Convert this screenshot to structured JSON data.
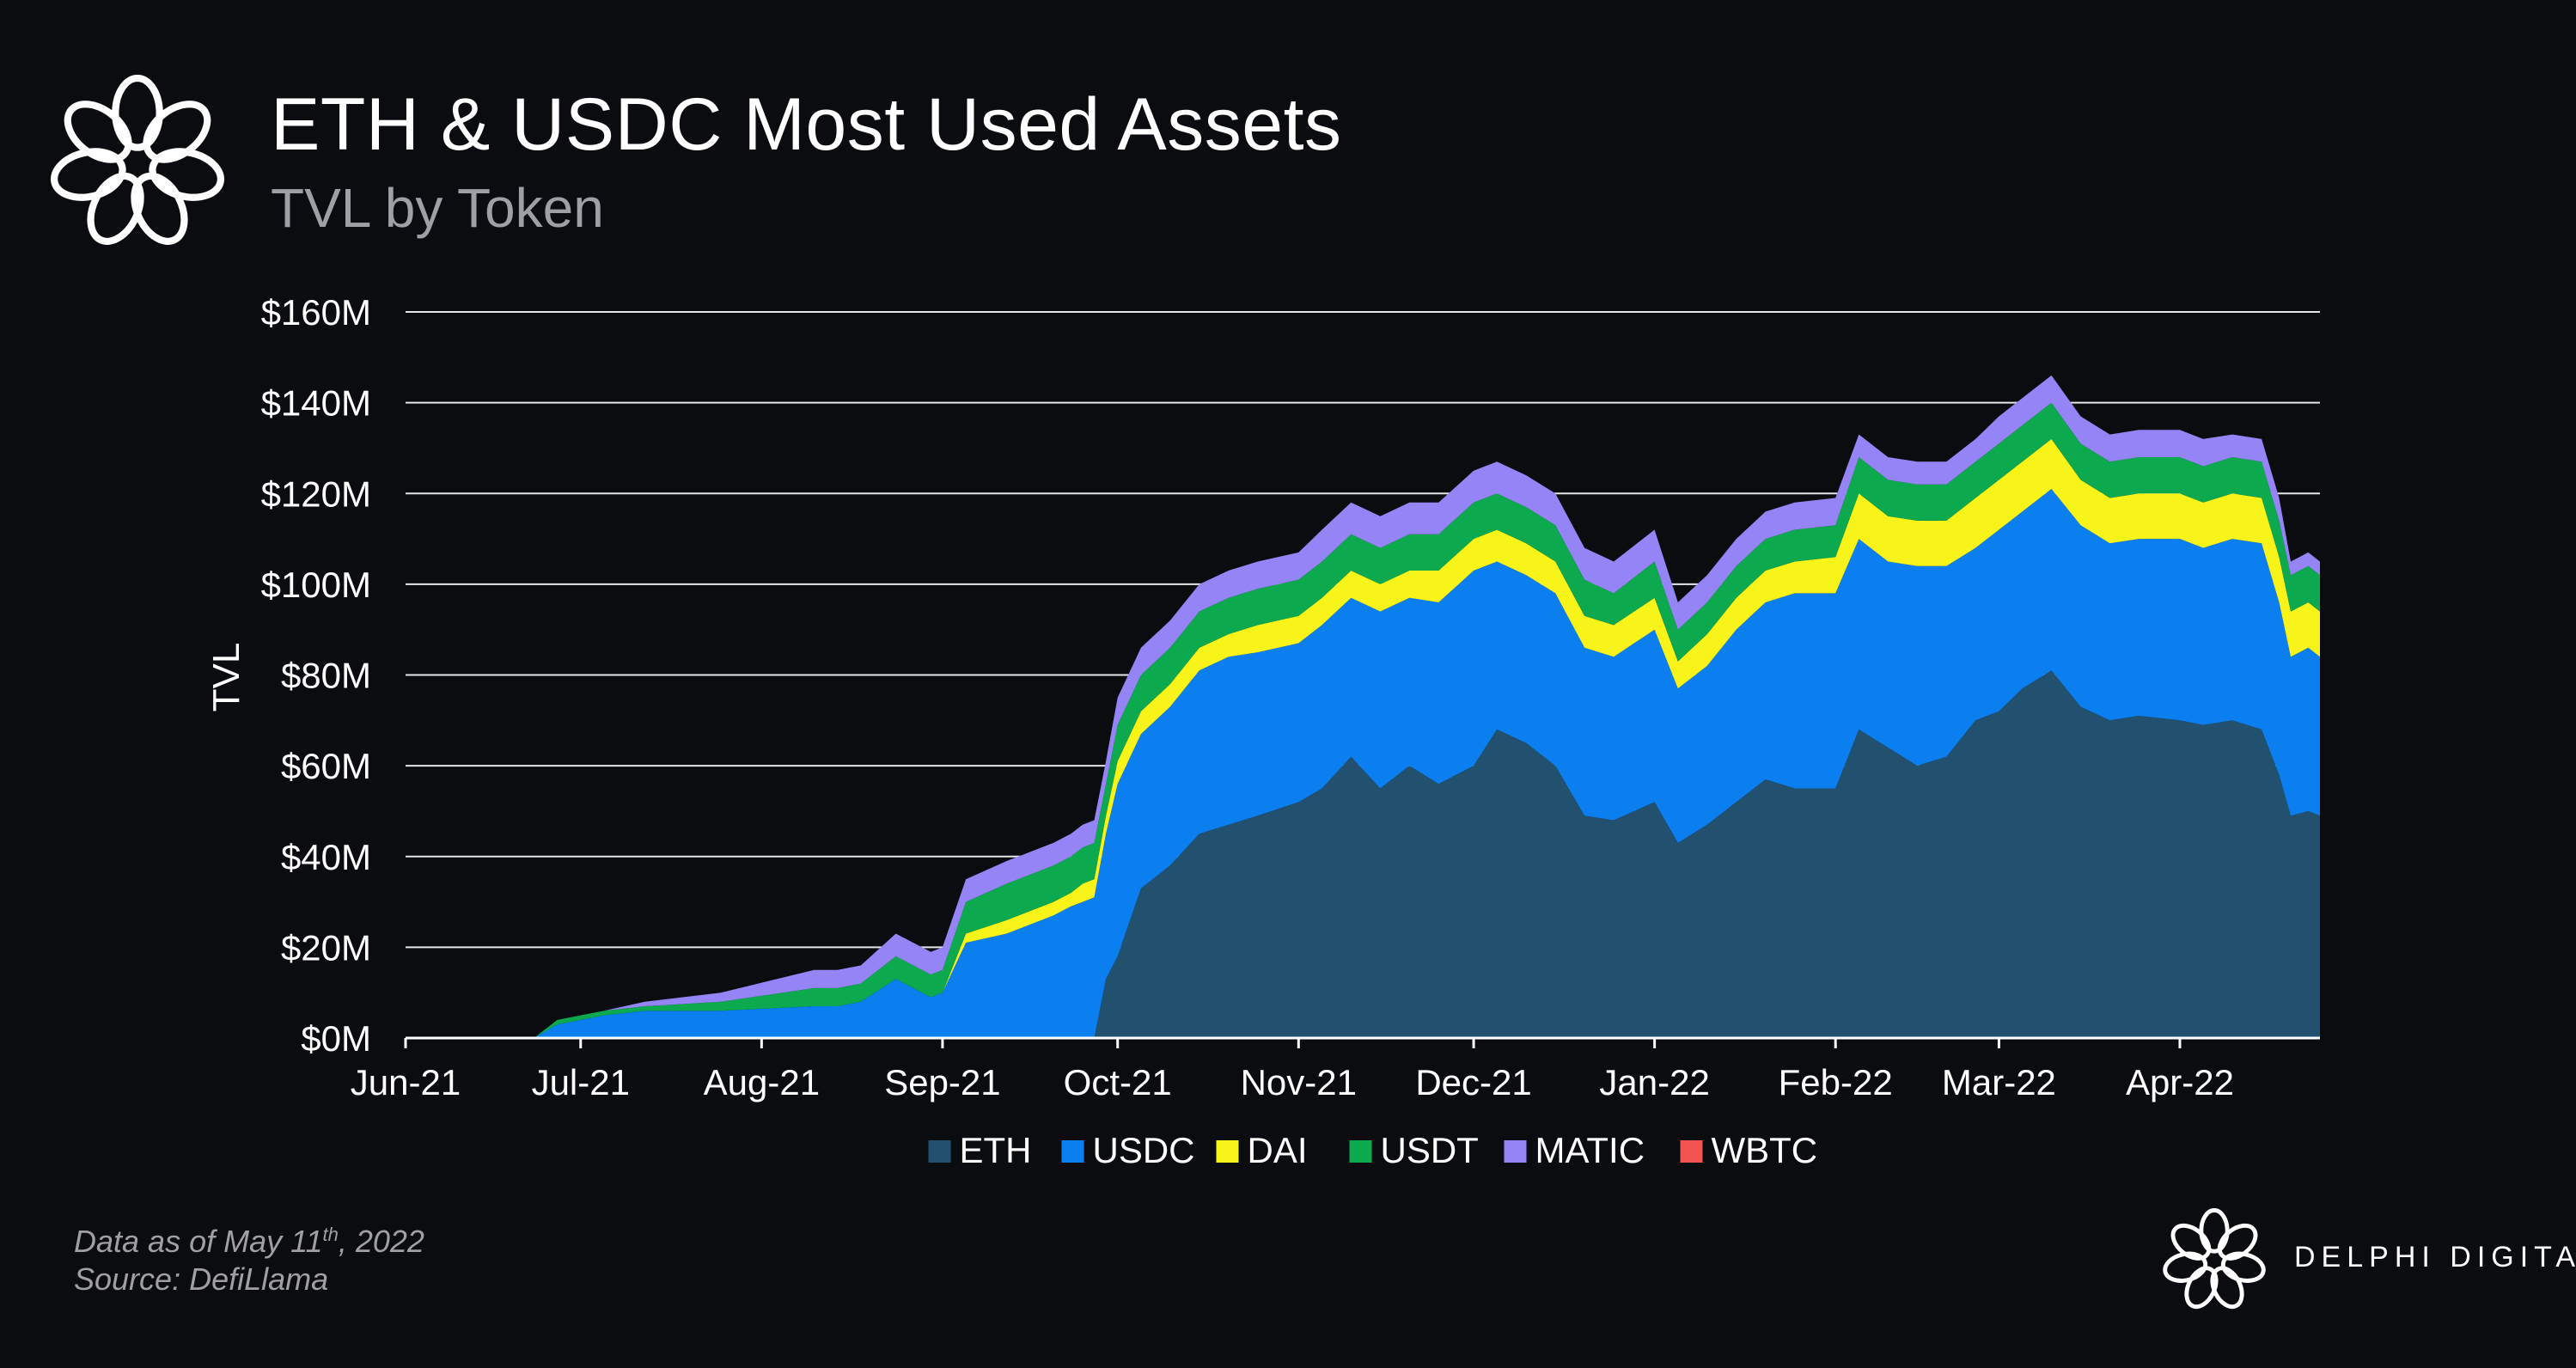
{
  "header": {
    "title": "ETH & USDC Most Used Assets",
    "subtitle": "TVL by Token"
  },
  "footnote": {
    "prefix": "Data as of May 11",
    "superscript": "th",
    "suffix": ", 2022",
    "source": "Source: DefiLlama"
  },
  "brand": {
    "name": "DELPHI DIGITAL",
    "logo_icon": "knot-flower-icon"
  },
  "chart_data": {
    "type": "area",
    "stacked": true,
    "title": "ETH & USDC Most Used Assets",
    "subtitle": "TVL by Token",
    "xlabel": "",
    "ylabel": "TVL",
    "ylim": [
      0,
      160
    ],
    "y_unit": "$M",
    "yticks": [
      0,
      20,
      40,
      60,
      80,
      100,
      120,
      140,
      160
    ],
    "ytick_labels": [
      "$0M",
      "$20M",
      "$40M",
      "$60M",
      "$80M",
      "$100M",
      "$120M",
      "$140M",
      "$160M"
    ],
    "xlim": [
      "2021-06-01",
      "2022-04-25"
    ],
    "xtick_labels": [
      "Jun-21",
      "Jul-21",
      "Aug-21",
      "Sep-21",
      "Oct-21",
      "Nov-21",
      "Dec-21",
      "Jan-22",
      "Feb-22",
      "Mar-22",
      "Apr-22"
    ],
    "xtick_dates": [
      "2021-06-01",
      "2021-07-01",
      "2021-08-01",
      "2021-09-01",
      "2021-10-01",
      "2021-11-01",
      "2021-12-01",
      "2022-01-01",
      "2022-02-01",
      "2022-03-01",
      "2022-04-01"
    ],
    "grid": "horizontal",
    "legend": "bottom",
    "x": [
      "2021-06-01",
      "2021-06-23",
      "2021-06-27",
      "2021-07-05",
      "2021-07-12",
      "2021-07-25",
      "2021-08-10",
      "2021-08-14",
      "2021-08-18",
      "2021-08-24",
      "2021-08-30",
      "2021-09-01",
      "2021-09-05",
      "2021-09-12",
      "2021-09-20",
      "2021-09-23",
      "2021-09-25",
      "2021-09-27",
      "2021-09-29",
      "2021-10-01",
      "2021-10-05",
      "2021-10-10",
      "2021-10-15",
      "2021-10-20",
      "2021-10-25",
      "2021-11-01",
      "2021-11-05",
      "2021-11-10",
      "2021-11-15",
      "2021-11-20",
      "2021-11-25",
      "2021-12-01",
      "2021-12-05",
      "2021-12-10",
      "2021-12-15",
      "2021-12-20",
      "2021-12-25",
      "2022-01-01",
      "2022-01-05",
      "2022-01-10",
      "2022-01-15",
      "2022-01-20",
      "2022-01-25",
      "2022-02-01",
      "2022-02-05",
      "2022-02-10",
      "2022-02-15",
      "2022-02-20",
      "2022-02-25",
      "2022-03-01",
      "2022-03-05",
      "2022-03-10",
      "2022-03-15",
      "2022-03-20",
      "2022-03-25",
      "2022-04-01",
      "2022-04-05",
      "2022-04-10",
      "2022-04-15",
      "2022-04-18",
      "2022-04-20",
      "2022-04-23",
      "2022-04-25"
    ],
    "series": [
      {
        "name": "ETH",
        "color": "#22506f",
        "values": [
          0,
          0,
          0,
          0,
          0,
          0,
          0,
          0,
          0,
          0,
          0,
          0,
          0,
          0,
          0,
          0,
          0,
          0,
          13,
          18,
          33,
          38,
          45,
          47,
          49,
          52,
          55,
          62,
          55,
          60,
          56,
          60,
          68,
          65,
          60,
          49,
          48,
          52,
          43,
          47,
          52,
          57,
          55,
          55,
          68,
          64,
          60,
          62,
          70,
          72,
          77,
          81,
          73,
          70,
          71,
          70,
          69,
          70,
          68,
          58,
          49,
          50,
          49
        ]
      },
      {
        "name": "USDC",
        "color": "#0b7ff0",
        "values": [
          0,
          0,
          3,
          5,
          6,
          6,
          7,
          7,
          8,
          13,
          9,
          10,
          21,
          23,
          27,
          29,
          30,
          31,
          32,
          38,
          34,
          35,
          36,
          37,
          36,
          35,
          36,
          35,
          39,
          37,
          40,
          43,
          37,
          37,
          38,
          37,
          36,
          38,
          34,
          35,
          38,
          39,
          43,
          43,
          42,
          41,
          44,
          42,
          38,
          40,
          39,
          40,
          40,
          39,
          39,
          40,
          39,
          40,
          41,
          38,
          35,
          36,
          35
        ]
      },
      {
        "name": "DAI",
        "color": "#f8f318",
        "values": [
          0,
          0,
          0,
          0,
          0,
          0,
          0,
          0,
          0,
          0,
          0,
          0,
          2,
          3,
          3,
          3,
          4,
          4,
          4,
          5,
          5,
          5,
          5,
          5,
          6,
          6,
          6,
          6,
          6,
          6,
          7,
          7,
          7,
          7,
          7,
          7,
          7,
          7,
          6,
          7,
          7,
          7,
          7,
          8,
          10,
          10,
          10,
          10,
          11,
          11,
          11,
          11,
          10,
          10,
          10,
          10,
          10,
          10,
          10,
          10,
          10,
          10,
          10
        ]
      },
      {
        "name": "USDT",
        "color": "#0ca94e",
        "values": [
          0,
          0,
          1,
          1,
          1,
          2,
          4,
          4,
          4,
          5,
          5,
          5,
          7,
          8,
          8,
          8,
          8,
          8,
          7,
          8,
          8,
          8,
          8,
          8,
          8,
          8,
          8,
          8,
          8,
          8,
          8,
          8,
          8,
          8,
          8,
          8,
          7,
          8,
          7,
          7,
          7,
          7,
          7,
          7,
          8,
          8,
          8,
          8,
          8,
          8,
          8,
          8,
          8,
          8,
          8,
          8,
          8,
          8,
          8,
          8,
          8,
          8,
          8
        ]
      },
      {
        "name": "MATIC",
        "color": "#9584f5",
        "values": [
          0,
          0,
          0,
          0,
          1,
          2,
          4,
          4,
          4,
          5,
          5,
          5,
          5,
          5,
          5,
          5,
          5,
          5,
          5,
          6,
          6,
          6,
          6,
          6,
          6,
          6,
          7,
          7,
          7,
          7,
          7,
          7,
          7,
          7,
          7,
          7,
          7,
          7,
          6,
          6,
          6,
          6,
          6,
          6,
          5,
          5,
          5,
          5,
          5,
          6,
          6,
          6,
          6,
          6,
          6,
          6,
          6,
          5,
          5,
          5,
          3,
          3,
          3
        ]
      },
      {
        "name": "WBTC",
        "color": "#f2544f",
        "values": [
          0,
          0,
          0,
          0,
          0,
          0,
          0,
          0,
          0,
          0,
          0,
          0,
          0,
          0,
          0,
          0,
          0,
          0,
          0,
          0,
          0,
          0,
          0,
          0,
          0,
          0,
          0,
          0,
          0,
          0,
          0,
          0,
          0,
          0,
          0,
          0,
          0,
          0,
          0,
          0,
          0,
          0,
          0,
          0,
          0,
          0,
          0,
          0,
          0,
          0,
          0,
          0,
          0,
          0,
          0,
          0,
          0,
          0,
          0,
          0,
          0,
          0,
          0
        ]
      }
    ]
  }
}
